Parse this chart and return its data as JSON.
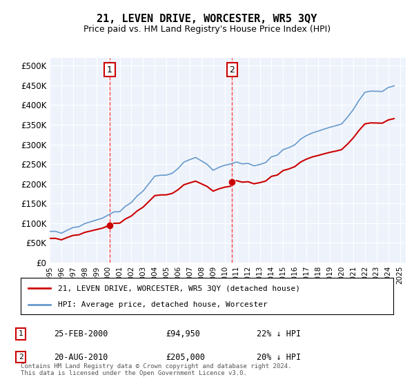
{
  "title": "21, LEVEN DRIVE, WORCESTER, WR5 3QY",
  "subtitle": "Price paid vs. HM Land Registry's House Price Index (HPI)",
  "bg_color": "#eef3fb",
  "plot_bg_color": "#eef3fb",
  "legend_label_red": "21, LEVEN DRIVE, WORCESTER, WR5 3QY (detached house)",
  "legend_label_blue": "HPI: Average price, detached house, Worcester",
  "footer": "Contains HM Land Registry data © Crown copyright and database right 2024.\nThis data is licensed under the Open Government Licence v3.0.",
  "transactions": [
    {
      "num": 1,
      "date": "25-FEB-2000",
      "price": "£94,950",
      "pct": "22% ↓ HPI",
      "year": 2000.14
    },
    {
      "num": 2,
      "date": "20-AUG-2010",
      "price": "£205,000",
      "pct": "20% ↓ HPI",
      "year": 2010.63
    }
  ],
  "yticks": [
    0,
    50000,
    100000,
    150000,
    200000,
    250000,
    300000,
    350000,
    400000,
    450000,
    500000
  ],
  "ylabels": [
    "£0",
    "£50K",
    "£100K",
    "£150K",
    "£200K",
    "£250K",
    "£300K",
    "£350K",
    "£400K",
    "£450K",
    "£500K"
  ],
  "xmin": 1995,
  "xmax": 2025.5,
  "ymin": 0,
  "ymax": 520000,
  "red_color": "#cc0000",
  "blue_color": "#6699cc",
  "dashed_color": "#ff4444"
}
